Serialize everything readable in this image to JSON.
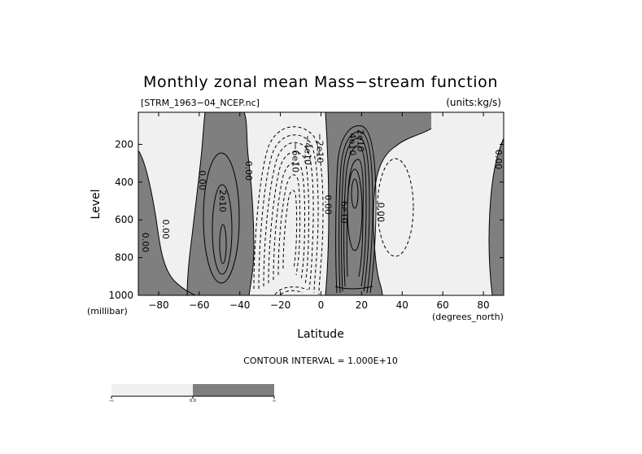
{
  "chart_data": {
    "type": "contour",
    "title": "Monthly zonal mean Mass−stream function",
    "file_label": "[STRM_1963−04_NCEP.nc]",
    "units_label": "(units:kg/s)",
    "xlabel": "Latitude",
    "x_unit": "(degrees_north)",
    "ylabel": "Level",
    "y_unit": "(millibar)",
    "xlim": [
      -90,
      90
    ],
    "ylim": [
      1000,
      30
    ],
    "x_ticks": [
      -80,
      -60,
      -40,
      -20,
      0,
      20,
      40,
      60,
      80
    ],
    "y_ticks": [
      200,
      400,
      600,
      800,
      1000
    ],
    "contour_interval_text": "CONTOUR INTERVAL = 1.000E+10",
    "contour_interval": 10000000000,
    "shading": {
      "positive_color": "#7f7f7f",
      "negative_color": "#f0f0f0"
    },
    "colorbar": {
      "labels": [
        "-∞",
        "0.0",
        "∞"
      ],
      "colors": [
        "#f0f0f0",
        "#7f7f7f"
      ]
    },
    "contour_labels": [
      {
        "text": "0.00",
        "lat": -60,
        "lev": 390
      },
      {
        "text": "0.00",
        "lat": -37,
        "lev": 340
      },
      {
        "text": "0.00",
        "lat": -78,
        "lev": 650
      },
      {
        "text": "0.00",
        "lat": -88,
        "lev": 720
      },
      {
        "text": "2e10",
        "lat": -50,
        "lev": 500
      },
      {
        "text": "−6e10",
        "lat": -14,
        "lev": 270
      },
      {
        "text": "−4e10",
        "lat": -8,
        "lev": 230
      },
      {
        "text": "−2e10",
        "lat": -2,
        "lev": 220
      },
      {
        "text": "0.00",
        "lat": 2,
        "lev": 520
      },
      {
        "text": "6e10",
        "lat": 10,
        "lev": 560
      },
      {
        "text": "4e10",
        "lat": 14,
        "lev": 200
      },
      {
        "text": "2e10",
        "lat": 18,
        "lev": 180
      },
      {
        "text": "0.00",
        "lat": 28,
        "lev": 560
      },
      {
        "text": "0.00",
        "lat": 86,
        "lev": 280
      }
    ]
  }
}
